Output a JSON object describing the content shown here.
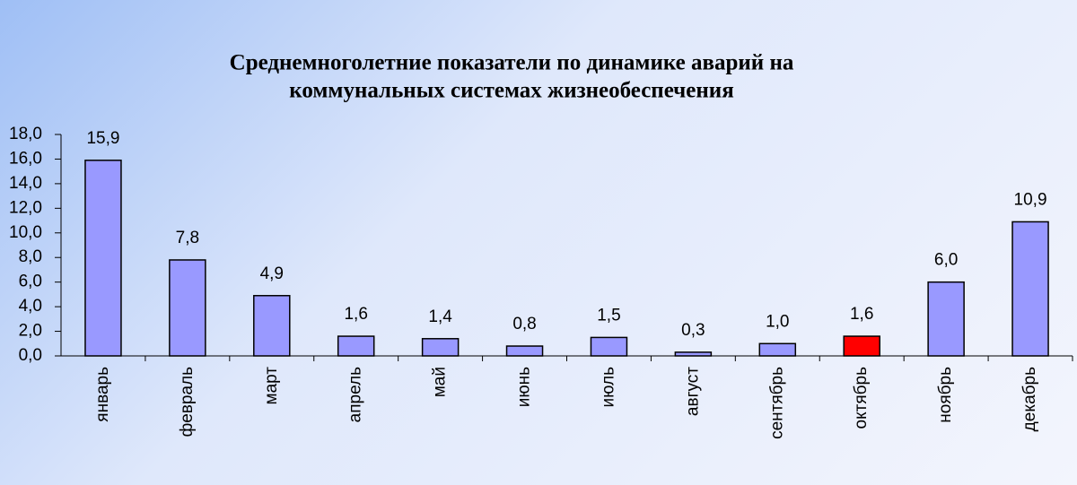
{
  "chart_data": {
    "type": "bar",
    "title": [
      "Среднемноголетние показатели по динамике аварий на",
      "коммунальных системах жизнеобеспечения"
    ],
    "categories": [
      "январь",
      "февраль",
      "март",
      "апрель",
      "май",
      "июнь",
      "июль",
      "август",
      "сентябрь",
      "октябрь",
      "ноябрь",
      "декабрь"
    ],
    "values": [
      15.9,
      7.8,
      4.9,
      1.6,
      1.4,
      0.8,
      1.5,
      0.3,
      1.0,
      1.6,
      6.0,
      10.9
    ],
    "value_labels": [
      "15,9",
      "7,8",
      "4,9",
      "1,6",
      "1,4",
      "0,8",
      "1,5",
      "0,3",
      "1,0",
      "1,6",
      "6,0",
      "10,9"
    ],
    "colors": [
      "#9999ff",
      "#9999ff",
      "#9999ff",
      "#9999ff",
      "#9999ff",
      "#9999ff",
      "#9999ff",
      "#9999ff",
      "#9999ff",
      "#ff0000",
      "#9999ff",
      "#9999ff"
    ],
    "ylim": [
      0,
      18
    ],
    "yticks": [
      {
        "value": 0,
        "label": "0,0"
      },
      {
        "value": 2,
        "label": "2,0"
      },
      {
        "value": 4,
        "label": "4,0"
      },
      {
        "value": 6,
        "label": "6,0"
      },
      {
        "value": 8,
        "label": "8,0"
      },
      {
        "value": 10,
        "label": "10,0"
      },
      {
        "value": 12,
        "label": "12,0"
      },
      {
        "value": 14,
        "label": "14,0"
      },
      {
        "value": 16,
        "label": "16,0"
      },
      {
        "value": 18,
        "label": "18,0"
      }
    ],
    "grid": false
  }
}
